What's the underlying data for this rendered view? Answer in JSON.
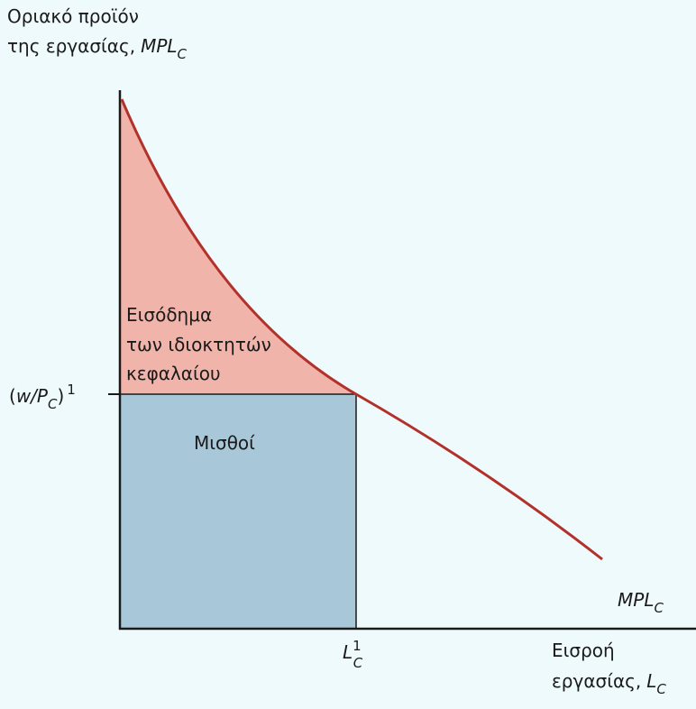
{
  "y_axis_label": {
    "line1": "Οριακό προϊόν",
    "line2": "της εργασίας,",
    "var": "MPL",
    "sub": "C"
  },
  "x_axis_label": {
    "line1": "Εισροή",
    "line2": "εργασίας,",
    "var": "L",
    "sub": "C"
  },
  "y_tick": {
    "open": "(",
    "var": "w/P",
    "sub": "C",
    "close": ")",
    "sup": "1"
  },
  "x_tick": {
    "var": "L",
    "sup": "1",
    "sub": "C"
  },
  "curve_label": {
    "var": "MPL",
    "sub": "C"
  },
  "regions": {
    "capital": [
      "Εισόδημα",
      "των ιδιοκτητών",
      "κεφαλαίου"
    ],
    "wages": "Μισθοί"
  }
}
